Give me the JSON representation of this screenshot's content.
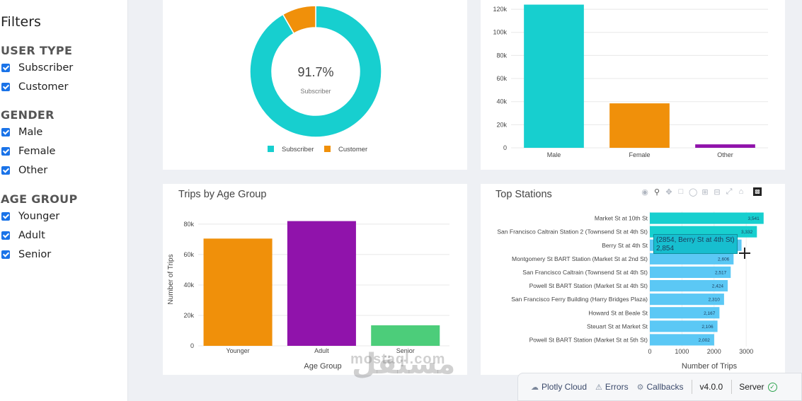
{
  "sidebar": {
    "title": "Filters",
    "user_type": {
      "heading": "USER TYPE",
      "options": [
        "Subscriber",
        "Customer"
      ]
    },
    "gender": {
      "heading": "GENDER",
      "options": [
        "Male",
        "Female",
        "Other"
      ]
    },
    "age_group": {
      "heading": "AGE GROUP",
      "options": [
        "Younger",
        "Adult",
        "Senior"
      ]
    }
  },
  "colors": {
    "teal": "#17cfcf",
    "orange": "#f0900a",
    "purple": "#9013ab",
    "green": "#4ccd7a",
    "sky": "#5bc8f5"
  },
  "donut": {
    "center_value": "91.7%",
    "center_label": "Subscriber",
    "legend": [
      "Subscriber",
      "Customer"
    ]
  },
  "age": {
    "title": "Trips by Age Group",
    "xlabel": "Age Group",
    "ylabel": "Number of Trips"
  },
  "stations": {
    "title": "Top Stations",
    "xlabel": "Number of Trips",
    "tooltip_line1": "(2854, Berry St at 4th St)",
    "tooltip_line2": "2,854"
  },
  "devbar": {
    "cloud": "Plotly Cloud",
    "errors": "Errors",
    "callbacks": "Callbacks",
    "version": "v4.0.0",
    "server": "Server"
  },
  "watermark": {
    "latin": "mostaql.com",
    "arabic": "مستقل"
  },
  "chart_data": [
    {
      "type": "pie",
      "categories": [
        "Subscriber",
        "Customer"
      ],
      "values": [
        91.7,
        8.3
      ],
      "legend": "bottom"
    },
    {
      "type": "bar",
      "categories": [
        "Male",
        "Female",
        "Other"
      ],
      "values": [
        124000,
        38500,
        3000
      ],
      "ylim": [
        0,
        128000
      ],
      "yticks": [
        0,
        20000,
        40000,
        60000,
        80000,
        100000,
        120000
      ],
      "ytick_labels": [
        "0",
        "20k",
        "40k",
        "60k",
        "80k",
        "100k",
        "120k"
      ]
    },
    {
      "type": "bar",
      "categories": [
        "Younger",
        "Adult",
        "Senior"
      ],
      "values": [
        70500,
        82000,
        13500
      ],
      "ylim": [
        0,
        86000
      ],
      "yticks": [
        0,
        20000,
        40000,
        60000,
        80000
      ],
      "ytick_labels": [
        "0",
        "20k",
        "40k",
        "60k",
        "80k"
      ],
      "title": "Trips by Age Group",
      "xlabel": "Age Group",
      "ylabel": "Number of Trips"
    },
    {
      "type": "bar",
      "orientation": "horizontal",
      "categories": [
        "Market St at 10th St",
        "San Francisco Caltrain Station 2  (Townsend St at 4th St)",
        "Berry St at 4th St",
        "Montgomery St BART Station (Market St at 2nd St)",
        "San Francisco Caltrain (Townsend St at 4th St)",
        "Powell St BART Station (Market St at 4th St)",
        "San Francisco Ferry Building (Harry Bridges Plaza)",
        "Howard St at Beale St",
        "Steuart St at Market St",
        "Powell St BART Station (Market St at 5th St)"
      ],
      "values": [
        3541,
        3332,
        2854,
        2606,
        2517,
        2424,
        2310,
        2167,
        2106,
        2002
      ],
      "value_labels": [
        "3,541",
        "3,332",
        "2,854",
        "2,606",
        "2,517",
        "2,424",
        "2,310",
        "2,167",
        "2,106",
        "2,002"
      ],
      "xlim": [
        0,
        3700
      ],
      "xticks": [
        0,
        1000,
        2000,
        3000
      ],
      "title": "Top Stations",
      "xlabel": "Number of Trips"
    }
  ]
}
